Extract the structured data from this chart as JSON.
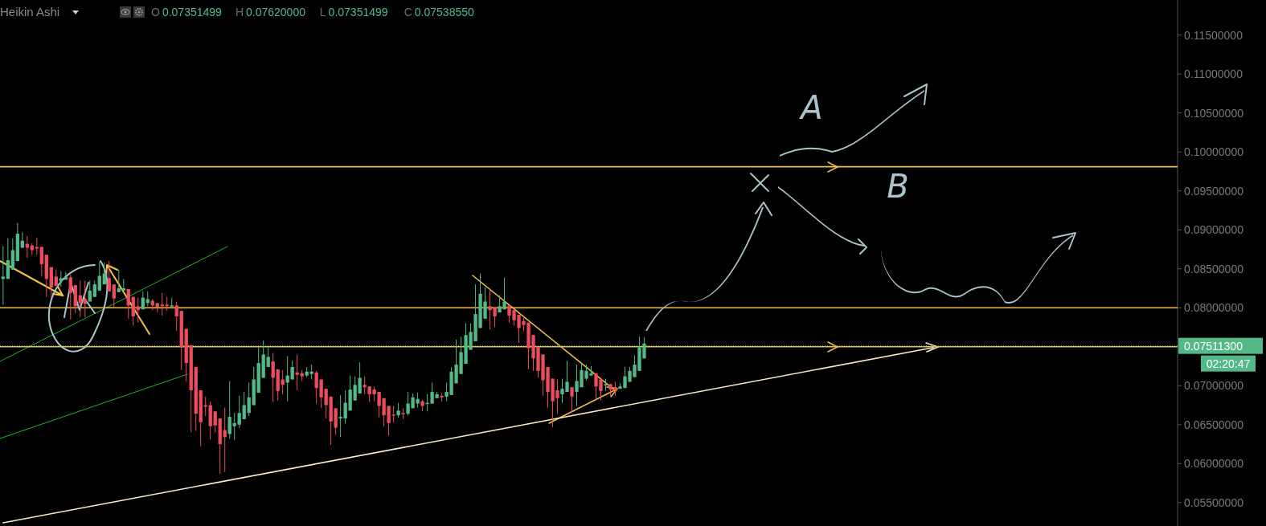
{
  "chart_data": {
    "type": "candlestick",
    "title": "Heikin Ashi",
    "categories": [
      null,
      null,
      null,
      null,
      null,
      null,
      null,
      null,
      null,
      null,
      null,
      null,
      null,
      null,
      null,
      null,
      null,
      null,
      null,
      null,
      null,
      null,
      null,
      null,
      null,
      null,
      null,
      null,
      null,
      null,
      null,
      null,
      null,
      null,
      null,
      null,
      null,
      null,
      null,
      null,
      null,
      null,
      null,
      null,
      null,
      null,
      null,
      null,
      null,
      null,
      null,
      null,
      null,
      null,
      null,
      null,
      null,
      null,
      null,
      null,
      null,
      null,
      null,
      null,
      null,
      null,
      null,
      null,
      null,
      null,
      null,
      null,
      null,
      null,
      null,
      null,
      null,
      null,
      null,
      null,
      null,
      null,
      null,
      null,
      null,
      null,
      null,
      null,
      null,
      null,
      null,
      null,
      null,
      null,
      null,
      null,
      null,
      null,
      null,
      null,
      null,
      null,
      null,
      null,
      null,
      null,
      null,
      null,
      null,
      null,
      null,
      null,
      null,
      null,
      null,
      null,
      null,
      null,
      null,
      null,
      null,
      null,
      null,
      null,
      null,
      null,
      null,
      null,
      null,
      null,
      null,
      null,
      null,
      null,
      null,
      null,
      null,
      null,
      null,
      null,
      null,
      null,
      null,
      null,
      null,
      null,
      null,
      null,
      null,
      null,
      null,
      null,
      null,
      null,
      null,
      null,
      null,
      null,
      null,
      null,
      null,
      null,
      null,
      null,
      null,
      null,
      null,
      null,
      null,
      null,
      null,
      null,
      null,
      null,
      null,
      null,
      null,
      null,
      null,
      null,
      null,
      null,
      null,
      null,
      null,
      null,
      null,
      null,
      null,
      null,
      null,
      null,
      null,
      null,
      null,
      null,
      null,
      null,
      null,
      null,
      null,
      null,
      null,
      null,
      null,
      null,
      null,
      null,
      null,
      null,
      null,
      null,
      null,
      null,
      null,
      null,
      null,
      null,
      null,
      null,
      null,
      null,
      null,
      null,
      null,
      null,
      null,
      null,
      null,
      null,
      null,
      null,
      null,
      null,
      null,
      null,
      null,
      null,
      null,
      null,
      null,
      null,
      null,
      null
    ],
    "ohlc": [
      [
        0.0837,
        0.0879,
        0.0804,
        0.084
      ],
      [
        0.0837,
        0.0889,
        0.0837,
        0.0861
      ],
      [
        0.0849,
        0.0889,
        0.0849,
        0.0874
      ],
      [
        0.086,
        0.0909,
        0.086,
        0.0895
      ],
      [
        0.0877,
        0.0897,
        0.0877,
        0.0886
      ],
      [
        0.0882,
        0.0892,
        0.0864,
        0.0877
      ],
      [
        0.088,
        0.0883,
        0.0868,
        0.0874
      ],
      [
        0.0878,
        0.089,
        0.0868,
        0.0876
      ],
      [
        0.0878,
        0.0878,
        0.084,
        0.0856
      ],
      [
        0.0868,
        0.0868,
        0.0814,
        0.0837
      ],
      [
        0.0852,
        0.0852,
        0.0812,
        0.0826
      ],
      [
        0.084,
        0.0849,
        0.0828,
        0.0828
      ],
      [
        0.0834,
        0.0847,
        0.0827,
        0.0838
      ],
      [
        0.0836,
        0.0846,
        0.0836,
        0.084
      ],
      [
        0.0839,
        0.0843,
        0.0785,
        0.0819
      ],
      [
        0.0829,
        0.0829,
        0.0793,
        0.0802
      ],
      [
        0.0816,
        0.0835,
        0.0788,
        0.0806
      ],
      [
        0.0811,
        0.0835,
        0.0788,
        0.0805
      ],
      [
        0.0808,
        0.0835,
        0.0808,
        0.0822
      ],
      [
        0.0814,
        0.0835,
        0.0814,
        0.083
      ],
      [
        0.0822,
        0.0859,
        0.0822,
        0.0841
      ],
      [
        0.083,
        0.0858,
        0.083,
        0.0844
      ],
      [
        0.0838,
        0.086,
        0.0821,
        0.0821
      ],
      [
        0.083,
        0.083,
        0.0801,
        0.0812
      ],
      [
        0.082,
        0.0849,
        0.082,
        0.0825
      ],
      [
        0.0822,
        0.0837,
        0.0822,
        0.0825
      ],
      [
        0.0824,
        0.0824,
        0.0786,
        0.0803
      ],
      [
        0.0814,
        0.0814,
        0.0777,
        0.0789
      ],
      [
        0.0802,
        0.0813,
        0.0781,
        0.0797
      ],
      [
        0.0798,
        0.0821,
        0.0798,
        0.0813
      ],
      [
        0.0806,
        0.0821,
        0.0802,
        0.0811
      ],
      [
        0.0809,
        0.0811,
        0.0797,
        0.0803
      ],
      [
        0.0806,
        0.0806,
        0.0794,
        0.0801
      ],
      [
        0.0804,
        0.0819,
        0.079,
        0.0802
      ],
      [
        0.0804,
        0.0814,
        0.0796,
        0.0802
      ],
      [
        0.0802,
        0.0813,
        0.0802,
        0.0803
      ],
      [
        0.0803,
        0.0808,
        0.077,
        0.0789
      ],
      [
        0.0796,
        0.0796,
        0.072,
        0.0749
      ],
      [
        0.0773,
        0.0773,
        0.0705,
        0.0729
      ],
      [
        0.0752,
        0.0752,
        0.064,
        0.0694
      ],
      [
        0.0724,
        0.0724,
        0.0642,
        0.0664
      ],
      [
        0.0694,
        0.0694,
        0.0622,
        0.0653
      ],
      [
        0.0675,
        0.0686,
        0.0661,
        0.0673
      ],
      [
        0.0675,
        0.068,
        0.0631,
        0.0648
      ],
      [
        0.0667,
        0.0667,
        0.064,
        0.0649
      ],
      [
        0.0658,
        0.0658,
        0.0587,
        0.0625
      ],
      [
        0.0643,
        0.0672,
        0.0589,
        0.0634
      ],
      [
        0.0638,
        0.0706,
        0.0632,
        0.066
      ],
      [
        0.0648,
        0.0665,
        0.063,
        0.0652
      ],
      [
        0.065,
        0.0687,
        0.0646,
        0.0665
      ],
      [
        0.0657,
        0.0692,
        0.0657,
        0.0675
      ],
      [
        0.0665,
        0.0704,
        0.0661,
        0.0685
      ],
      [
        0.0675,
        0.0724,
        0.0675,
        0.0708
      ],
      [
        0.0691,
        0.0749,
        0.0691,
        0.0729
      ],
      [
        0.071,
        0.0758,
        0.071,
        0.074
      ],
      [
        0.0724,
        0.0749,
        0.0724,
        0.0737
      ],
      [
        0.0731,
        0.0742,
        0.0679,
        0.071
      ],
      [
        0.0721,
        0.0721,
        0.0681,
        0.0693
      ],
      [
        0.0708,
        0.072,
        0.0689,
        0.0701
      ],
      [
        0.0704,
        0.0738,
        0.068,
        0.0713
      ],
      [
        0.0708,
        0.0732,
        0.0708,
        0.0724
      ],
      [
        0.0717,
        0.074,
        0.0694,
        0.0714
      ],
      [
        0.0716,
        0.072,
        0.0706,
        0.0712
      ],
      [
        0.0713,
        0.0724,
        0.0711,
        0.0718
      ],
      [
        0.0715,
        0.0727,
        0.0708,
        0.0718
      ],
      [
        0.0717,
        0.0719,
        0.0677,
        0.0697
      ],
      [
        0.0708,
        0.0708,
        0.0671,
        0.0685
      ],
      [
        0.0696,
        0.0696,
        0.0658,
        0.0675
      ],
      [
        0.0686,
        0.0686,
        0.0624,
        0.0654
      ],
      [
        0.0671,
        0.0671,
        0.0637,
        0.0646
      ],
      [
        0.0658,
        0.0688,
        0.0634,
        0.066
      ],
      [
        0.0658,
        0.0694,
        0.0651,
        0.0678
      ],
      [
        0.0668,
        0.0713,
        0.0668,
        0.0695
      ],
      [
        0.0681,
        0.0712,
        0.0681,
        0.0701
      ],
      [
        0.069,
        0.073,
        0.069,
        0.071
      ],
      [
        0.0701,
        0.0712,
        0.0689,
        0.0698
      ],
      [
        0.0699,
        0.0699,
        0.0679,
        0.0689
      ],
      [
        0.0695,
        0.0699,
        0.068,
        0.0689
      ],
      [
        0.0692,
        0.0692,
        0.0659,
        0.0674
      ],
      [
        0.0684,
        0.0684,
        0.0648,
        0.0662
      ],
      [
        0.0674,
        0.0674,
        0.0636,
        0.0652
      ],
      [
        0.0663,
        0.0674,
        0.0653,
        0.0662
      ],
      [
        0.0662,
        0.0678,
        0.0659,
        0.0668
      ],
      [
        0.0665,
        0.0671,
        0.0657,
        0.0664
      ],
      [
        0.0664,
        0.0692,
        0.0662,
        0.0677
      ],
      [
        0.0671,
        0.069,
        0.0671,
        0.0685
      ],
      [
        0.0677,
        0.0691,
        0.0672,
        0.0683
      ],
      [
        0.068,
        0.0682,
        0.0667,
        0.0674
      ],
      [
        0.0677,
        0.0689,
        0.0667,
        0.0678
      ],
      [
        0.0677,
        0.0704,
        0.0677,
        0.0692
      ],
      [
        0.0684,
        0.0692,
        0.0684,
        0.0689
      ],
      [
        0.0687,
        0.069,
        0.068,
        0.0685
      ],
      [
        0.0686,
        0.0704,
        0.068,
        0.0692
      ],
      [
        0.0688,
        0.0724,
        0.0688,
        0.0718
      ],
      [
        0.0703,
        0.0759,
        0.0703,
        0.0727
      ],
      [
        0.0715,
        0.0763,
        0.0715,
        0.0743
      ],
      [
        0.0728,
        0.078,
        0.0728,
        0.0765
      ],
      [
        0.0746,
        0.078,
        0.0746,
        0.0769
      ],
      [
        0.0757,
        0.083,
        0.0757,
        0.0792
      ],
      [
        0.0774,
        0.0844,
        0.0774,
        0.0818
      ],
      [
        0.0786,
        0.0826,
        0.0786,
        0.0808
      ],
      [
        0.0802,
        0.0824,
        0.0772,
        0.0797
      ],
      [
        0.0801,
        0.0801,
        0.0775,
        0.0789
      ],
      [
        0.0794,
        0.0816,
        0.0794,
        0.0802
      ],
      [
        0.0798,
        0.0839,
        0.0798,
        0.0808
      ],
      [
        0.0803,
        0.0803,
        0.0781,
        0.079
      ],
      [
        0.0797,
        0.0797,
        0.0777,
        0.0784
      ],
      [
        0.0791,
        0.0791,
        0.0755,
        0.0774
      ],
      [
        0.0783,
        0.079,
        0.077,
        0.0778
      ],
      [
        0.0781,
        0.0781,
        0.0721,
        0.0748
      ],
      [
        0.0765,
        0.0765,
        0.0719,
        0.0735
      ],
      [
        0.075,
        0.075,
        0.071,
        0.0719
      ],
      [
        0.074,
        0.074,
        0.0687,
        0.0707
      ],
      [
        0.0724,
        0.0724,
        0.0672,
        0.0692
      ],
      [
        0.0709,
        0.0709,
        0.0647,
        0.068
      ],
      [
        0.0694,
        0.0708,
        0.0664,
        0.0684
      ],
      [
        0.0689,
        0.0709,
        0.0678,
        0.0696
      ],
      [
        0.0692,
        0.0732,
        0.0692,
        0.0705
      ],
      [
        0.0698,
        0.0698,
        0.0665,
        0.0686
      ],
      [
        0.0692,
        0.0727,
        0.0674,
        0.0706
      ],
      [
        0.0698,
        0.0729,
        0.0698,
        0.072
      ],
      [
        0.0709,
        0.0727,
        0.0707,
        0.0719
      ],
      [
        0.0713,
        0.0725,
        0.0713,
        0.0716
      ],
      [
        0.0716,
        0.0716,
        0.0681,
        0.0699
      ],
      [
        0.0708,
        0.0708,
        0.0681,
        0.0693
      ],
      [
        0.0701,
        0.0709,
        0.0693,
        0.0702
      ],
      [
        0.0702,
        0.0702,
        0.0687,
        0.0695
      ],
      [
        0.0698,
        0.0705,
        0.0687,
        0.0694
      ],
      [
        0.0696,
        0.0703,
        0.0696,
        0.0699
      ],
      [
        0.0697,
        0.0724,
        0.0697,
        0.0712
      ],
      [
        0.0705,
        0.0724,
        0.0705,
        0.0719
      ],
      [
        0.0711,
        0.0739,
        0.0711,
        0.0727
      ],
      [
        0.0719,
        0.0763,
        0.0719,
        0.0749
      ],
      [
        0.0735,
        0.0762,
        0.0735,
        0.0754
      ],
      null,
      null,
      null,
      null,
      null,
      null,
      null,
      null,
      null,
      null,
      null,
      null,
      null,
      null,
      null,
      null,
      null,
      null,
      null,
      null,
      null,
      null,
      null,
      null,
      null,
      null,
      null,
      null,
      null,
      null,
      null,
      null,
      null,
      null,
      null,
      null,
      null,
      null,
      null,
      null,
      null,
      null,
      null,
      null,
      null,
      null,
      null,
      null,
      null,
      null,
      null,
      null,
      null,
      null,
      null,
      null,
      null,
      null,
      null,
      null,
      null,
      null,
      null,
      null,
      null,
      null,
      null,
      null,
      null,
      null,
      null,
      null,
      null,
      null,
      null,
      null,
      null,
      null,
      null,
      null,
      null,
      null,
      null,
      null,
      null,
      null,
      null,
      null,
      null,
      null,
      null,
      null,
      null,
      null,
      null,
      null,
      null,
      null,
      null,
      null,
      null,
      null,
      null,
      null,
      null,
      null,
      null,
      null,
      null,
      null
    ],
    "colors": [
      "#53b987",
      "#53b987",
      "#53b987",
      "#53b987",
      "#53b987",
      "#eb4d5c",
      "#eb4d5c",
      "#eb4d5c",
      "#eb4d5c",
      "#eb4d5c",
      "#eb4d5c",
      "#eb4d5c",
      "#53b987",
      "#53b987",
      "#eb4d5c",
      "#eb4d5c",
      "#eb4d5c",
      "#eb4d5c",
      "#53b987",
      "#53b987",
      "#53b987",
      "#53b987",
      "#eb4d5c",
      "#eb4d5c",
      "#53b987",
      "#53b987",
      "#eb4d5c",
      "#eb4d5c",
      "#eb4d5c",
      "#53b987",
      "#53b987",
      "#eb4d5c",
      "#eb4d5c",
      "#eb4d5c",
      "#eb4d5c",
      "#53b987",
      "#eb4d5c",
      "#eb4d5c",
      "#eb4d5c",
      "#eb4d5c",
      "#eb4d5c",
      "#eb4d5c",
      "#eb4d5c",
      "#eb4d5c",
      "#eb4d5c",
      "#eb4d5c",
      "#eb4d5c",
      "#53b987",
      "#53b987",
      "#53b987",
      "#53b987",
      "#53b987",
      "#53b987",
      "#53b987",
      "#53b987",
      "#53b987",
      "#eb4d5c",
      "#eb4d5c",
      "#eb4d5c",
      "#53b987",
      "#53b987",
      "#eb4d5c",
      "#eb4d5c",
      "#53b987",
      "#53b987",
      "#eb4d5c",
      "#eb4d5c",
      "#eb4d5c",
      "#eb4d5c",
      "#eb4d5c",
      "#53b987",
      "#53b987",
      "#53b987",
      "#53b987",
      "#53b987",
      "#eb4d5c",
      "#eb4d5c",
      "#eb4d5c",
      "#eb4d5c",
      "#eb4d5c",
      "#eb4d5c",
      "#eb4d5c",
      "#53b987",
      "#eb4d5c",
      "#53b987",
      "#53b987",
      "#53b987",
      "#eb4d5c",
      "#53b987",
      "#53b987",
      "#53b987",
      "#eb4d5c",
      "#53b987",
      "#53b987",
      "#53b987",
      "#53b987",
      "#53b987",
      "#53b987",
      "#53b987",
      "#53b987",
      "#53b987",
      "#eb4d5c",
      "#eb4d5c",
      "#53b987",
      "#53b987",
      "#eb4d5c",
      "#eb4d5c",
      "#eb4d5c",
      "#eb4d5c",
      "#eb4d5c",
      "#eb4d5c",
      "#eb4d5c",
      "#eb4d5c",
      "#eb4d5c",
      "#eb4d5c",
      "#eb4d5c",
      "#53b987",
      "#53b987",
      "#eb4d5c",
      "#53b987",
      "#53b987",
      "#53b987",
      "#53b987",
      "#eb4d5c",
      "#eb4d5c",
      "#53b987",
      "#eb4d5c",
      "#eb4d5c",
      "#53b987",
      "#53b987",
      "#53b987",
      "#53b987",
      "#53b987",
      "#53b987",
      null,
      null,
      null,
      null,
      null,
      null,
      null,
      null,
      null,
      null,
      null,
      null,
      null,
      null,
      null,
      null,
      null,
      null,
      null,
      null,
      null,
      null,
      null,
      null,
      null,
      null,
      null,
      null,
      null,
      null,
      null,
      null,
      null,
      null,
      null,
      null,
      null,
      null,
      null,
      null,
      null,
      null,
      null,
      null,
      null,
      null,
      null,
      null,
      null,
      null,
      null,
      null,
      null,
      null,
      null,
      null,
      null,
      null,
      null,
      null,
      null,
      null,
      null,
      null,
      null,
      null,
      null,
      null,
      null,
      null,
      null,
      null,
      null,
      null,
      null,
      null,
      null,
      null,
      null,
      null,
      null,
      null,
      null,
      null,
      null,
      null,
      null,
      null,
      null,
      null,
      null,
      null,
      null,
      null,
      null,
      null,
      null,
      null,
      null,
      null,
      null,
      null,
      null,
      null,
      null,
      null,
      null,
      null,
      null,
      null
    ],
    "series": [
      {
        "type": "line",
        "color": "#fce7c8",
        "values": [
          0.0524,
          null,
          null,
          null,
          null,
          null,
          null,
          null,
          null,
          null,
          null,
          null,
          null,
          null,
          null,
          null,
          null,
          null,
          null,
          null,
          null,
          null,
          null,
          null,
          null,
          null,
          null,
          null,
          null,
          null,
          null,
          null,
          null,
          null,
          null,
          null,
          null,
          null,
          null,
          null,
          null,
          null,
          null,
          null,
          null,
          null,
          null,
          null,
          null,
          null,
          null,
          null,
          null,
          null,
          null,
          null,
          null,
          null,
          null,
          null,
          null,
          null,
          null,
          null,
          null,
          null,
          null,
          null,
          null,
          null,
          null,
          null,
          null,
          null,
          null,
          null,
          null,
          null,
          null,
          null,
          null,
          null,
          null,
          null,
          null,
          null,
          null,
          null,
          null,
          null,
          null,
          null,
          null,
          null,
          null,
          null,
          null,
          null,
          null,
          null,
          null,
          null,
          null,
          null,
          null,
          null,
          null,
          null,
          null,
          null,
          null,
          null,
          null,
          null,
          null,
          null,
          null,
          null,
          null,
          null,
          null,
          null,
          null,
          null,
          null,
          null,
          null,
          null,
          null,
          null,
          null,
          null,
          null,
          null,
          null,
          null,
          null,
          null,
          null,
          null,
          null,
          null,
          null,
          null,
          null,
          null,
          null,
          null,
          null,
          null,
          null,
          null,
          null,
          null,
          null,
          null,
          null,
          null,
          null,
          null,
          null,
          null,
          null,
          null,
          null,
          null,
          null,
          null,
          null,
          null,
          null,
          null,
          null,
          null,
          null,
          null,
          null,
          null,
          null,
          null,
          null,
          null,
          null,
          null,
          null,
          null,
          null,
          null,
          null,
          null,
          null,
          null,
          null,
          0.0749,
          null,
          null,
          null,
          null,
          null,
          null,
          null,
          null,
          null,
          null,
          null,
          null,
          null,
          null,
          null,
          null,
          null,
          null,
          null,
          null,
          null,
          null,
          null,
          null,
          null,
          null,
          null,
          null,
          null,
          null,
          null,
          null,
          null,
          null,
          null,
          null,
          null,
          null,
          null,
          null,
          null,
          null,
          null,
          null,
          null,
          null,
          null,
          null,
          null,
          null
        ]
      }
    ],
    "ref_lines": [
      {
        "axis": "y",
        "value": 0.0981,
        "color": "#f5c342"
      },
      {
        "axis": "y",
        "value": 0.08,
        "color": "#f5c342"
      },
      {
        "axis": "y",
        "value": 0.075,
        "color": "#f5c342"
      },
      {
        "axis": "y",
        "value": 0.075113,
        "label": "0.07511300",
        "color": "#53b987",
        "line_style": "dotted"
      }
    ],
    "annotations": [
      "O 0.07351499",
      "H 0.07620000",
      "L 0.07351499",
      "C 0.07538550",
      "A",
      "B",
      "02:20:47"
    ],
    "ylim": [
      0.0523,
      0.1195
    ],
    "yticks": [
      {
        "value": 0.055,
        "label": "0.05500000"
      },
      {
        "value": 0.06,
        "label": "0.06000000"
      },
      {
        "value": 0.065,
        "label": "0.06500000"
      },
      {
        "value": 0.07,
        "label": "0.07000000"
      },
      {
        "value": 0.08,
        "label": "0.08000000"
      },
      {
        "value": 0.085,
        "label": "0.08500000"
      },
      {
        "value": 0.09,
        "label": "0.09000000"
      },
      {
        "value": 0.095,
        "label": "0.09500000"
      },
      {
        "value": 0.1,
        "label": "0.10000000"
      },
      {
        "value": 0.105,
        "label": "0.10500000"
      },
      {
        "value": 0.11,
        "label": "0.11000000"
      },
      {
        "value": 0.115,
        "label": "0.11500000"
      }
    ],
    "tick_labels": "y"
  }
}
